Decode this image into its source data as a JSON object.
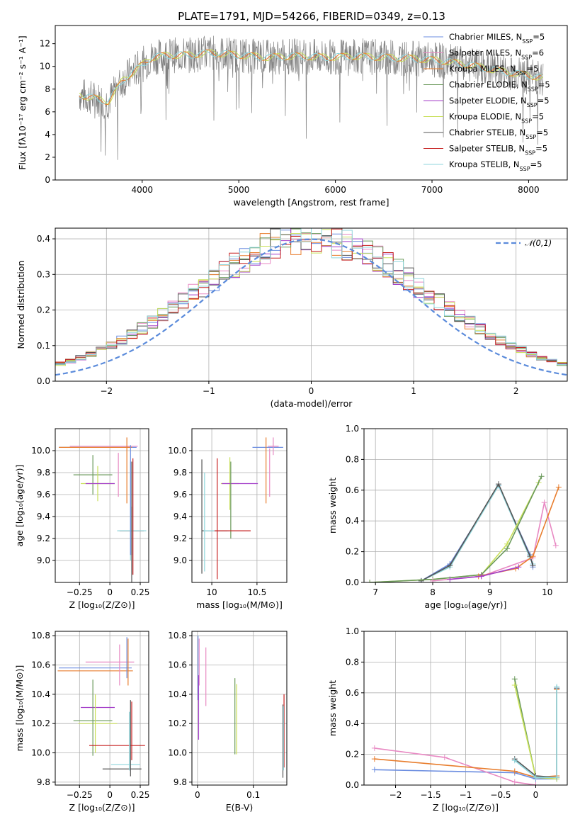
{
  "figure": {
    "title": "PLATE=1791, MJD=54266, FIBERID=0349, z=0.13"
  },
  "colors": {
    "Chabrier MILES": "#6b8de0",
    "Salpeter MILES": "#e889c3",
    "Kroupa MILES": "#e87d2d",
    "Chabrier ELODIE": "#6b9a5b",
    "Salpeter ELODIE": "#a43fc9",
    "Kroupa ELODIE": "#c9e05a",
    "Chabrier STELIB": "#555555",
    "Salpeter STELIB": "#c62020",
    "Kroupa STELIB": "#8fd6dc",
    "normal": "#5b8bdb"
  },
  "chart_data": [
    {
      "id": "spectrum",
      "type": "line",
      "title": "PLATE=1791, MJD=54266, FIBERID=0349, z=0.13",
      "xlabel": "wavelength [Angstrom, rest frame]",
      "ylabel": "Flux [fλ10⁻¹⁷ erg cm⁻² s⁻¹ A⁻¹]",
      "xlim": [
        3100,
        8400
      ],
      "ylim": [
        0,
        13.6
      ],
      "xticks": [
        4000,
        5000,
        6000,
        7000,
        8000
      ],
      "yticks": [
        0,
        2,
        4,
        6,
        8,
        10,
        12
      ],
      "legend_position": "upper right",
      "legend": [
        "Chabrier MILES, N_SSP=5",
        "Salpeter MILES, N_SSP=6",
        "Kroupa MILES, N_SSP=5",
        "Chabrier ELODIE, N_SSP=5",
        "Salpeter ELODIE, N_SSP=5",
        "Kroupa ELODIE, N_SSP=5",
        "Chabrier STELIB, N_SSP=5",
        "Salpeter STELIB, N_SSP=5",
        "Kroupa STELIB, N_SSP=5"
      ],
      "continuum": {
        "x": [
          3350,
          3500,
          3650,
          3800,
          3950,
          4100,
          4300,
          4500,
          4700,
          5000,
          5300,
          5600,
          5900,
          6200,
          6500,
          6800,
          7100,
          7400,
          7700,
          8000,
          8150
        ],
        "y": [
          7.5,
          7.2,
          6.9,
          8.8,
          9.8,
          10.8,
          11.0,
          11.0,
          11.2,
          11.0,
          10.8,
          10.9,
          10.8,
          10.9,
          10.8,
          10.7,
          10.5,
          10.1,
          9.6,
          9.2,
          9.0
        ]
      },
      "notes": [
        "a noisy grey observed spectrum overlaid with nine model fits"
      ]
    },
    {
      "id": "residuals",
      "type": "line",
      "xlabel": "(data-model)/error",
      "ylabel": "Normed distribution",
      "xlim": [
        -2.5,
        2.5
      ],
      "ylim": [
        0,
        0.43
      ],
      "xticks": [
        -2,
        -1,
        0,
        1,
        2
      ],
      "yticks": [
        0.0,
        0.1,
        0.2,
        0.3,
        0.4
      ],
      "grid": true,
      "legend_position": "upper right",
      "legend": [
        "𝒩(0,1)"
      ],
      "normal_curve": {
        "mean": 0,
        "sigma": 1
      }
    },
    {
      "id": "age-vs-Z",
      "type": "scatter",
      "xlabel": "Z [log₁₀(Z/Z⊙)]",
      "ylabel": "age  [log₁₀(age/yr)]",
      "xlim": [
        -0.45,
        0.32
      ],
      "ylim": [
        8.8,
        10.2
      ],
      "xticks": [
        -0.25,
        0.0,
        0.25
      ],
      "yticks": [
        9.0,
        9.2,
        9.4,
        9.6,
        9.8,
        10.0
      ],
      "grid": true,
      "points": [
        {
          "model": "Chabrier MILES",
          "x": -0.1,
          "y": 10.03,
          "xerr": 0.32,
          "yerr": 0.0
        },
        {
          "model": "Salpeter MILES",
          "x": -0.05,
          "y": 10.04,
          "xerr": 0.28,
          "yerr": 0.0
        },
        {
          "model": "Kroupa MILES",
          "x": -0.12,
          "y": 10.03,
          "xerr": 0.3,
          "yerr": 0.0
        },
        {
          "model": "Chabrier ELODIE",
          "x": -0.14,
          "y": 9.78,
          "xerr": 0.16,
          "yerr": 0.18
        },
        {
          "model": "Kroupa ELODIE",
          "x": -0.1,
          "y": 9.7,
          "xerr": 0.14,
          "yerr": 0.16
        },
        {
          "model": "Salpeter ELODIE",
          "x": -0.08,
          "y": 9.7,
          "xerr": 0.12,
          "yerr": 0.0
        },
        {
          "model": "Salpeter MILES",
          "x": 0.07,
          "y": 9.78,
          "xerr": 0.0,
          "yerr": 0.2
        },
        {
          "model": "Kroupa MILES",
          "x": 0.14,
          "y": 9.82,
          "xerr": 0.0,
          "yerr": 0.3
        },
        {
          "model": "Chabrier STELIB",
          "x": 0.18,
          "y": 9.27,
          "xerr": 0.1,
          "yerr": 0.22
        },
        {
          "model": "Salpeter STELIB",
          "x": 0.18,
          "y": 9.27,
          "xerr": 0.1,
          "yerr": 0.0
        },
        {
          "model": "Kroupa STELIB",
          "x": 0.18,
          "y": 9.27,
          "xerr": 0.12,
          "yerr": 0.0
        },
        {
          "model": "Salpeter STELIB",
          "x": 0.19,
          "y": 9.4,
          "xerr": 0.0,
          "yerr": 0.53
        },
        {
          "model": "Chabrier STELIB",
          "x": 0.18,
          "y": 9.35,
          "xerr": 0.0,
          "yerr": 0.55
        },
        {
          "model": "Kroupa STELIB",
          "x": 0.17,
          "y": 9.45,
          "xerr": 0.0,
          "yerr": 0.45
        },
        {
          "model": "Chabrier MILES",
          "x": 0.17,
          "y": 9.55,
          "xerr": 0.0,
          "yerr": 0.5
        }
      ]
    },
    {
      "id": "age-vs-mass",
      "type": "scatter",
      "xlabel": "mass [log₁₀(M/M⊙)]",
      "ylim": [
        8.8,
        10.2
      ],
      "xlim": [
        9.78,
        10.83
      ],
      "xticks": [
        10.0,
        10.5
      ],
      "yticks": [
        9.0,
        9.2,
        9.4,
        9.6,
        9.8,
        10.0
      ],
      "grid": true,
      "points": [
        {
          "model": "Chabrier MILES",
          "x": 10.62,
          "y": 10.03,
          "xerr": 0.17,
          "yerr": 0.0
        },
        {
          "model": "Salpeter MILES",
          "x": 10.68,
          "y": 10.04,
          "xerr": 0.06,
          "yerr": 0.08
        },
        {
          "model": "Kroupa MILES",
          "x": 10.6,
          "y": 9.82,
          "xerr": 0.0,
          "yerr": 0.3
        },
        {
          "model": "Salpeter MILES",
          "x": 10.64,
          "y": 9.8,
          "xerr": 0.0,
          "yerr": 0.22
        },
        {
          "model": "Kroupa ELODIE",
          "x": 10.2,
          "y": 9.7,
          "xerr": 0.1,
          "yerr": 0.24
        },
        {
          "model": "Salpeter ELODIE",
          "x": 10.31,
          "y": 9.7,
          "xerr": 0.2,
          "yerr": 0.0
        },
        {
          "model": "Chabrier ELODIE",
          "x": 10.21,
          "y": 9.55,
          "xerr": 0.0,
          "yerr": 0.35
        },
        {
          "model": "Chabrier STELIB",
          "x": 10.03,
          "y": 9.27,
          "xerr": 0.14,
          "yerr": 0.0
        },
        {
          "model": "Kroupa STELIB",
          "x": 10.05,
          "y": 9.27,
          "xerr": 0.14,
          "yerr": 0.0
        },
        {
          "model": "Salpeter STELIB",
          "x": 10.23,
          "y": 9.27,
          "xerr": 0.2,
          "yerr": 0.0
        },
        {
          "model": "Chabrier STELIB",
          "x": 9.89,
          "y": 9.4,
          "xerr": 0.0,
          "yerr": 0.52
        },
        {
          "model": "Kroupa STELIB",
          "x": 9.92,
          "y": 9.35,
          "xerr": 0.0,
          "yerr": 0.45
        },
        {
          "model": "Salpeter STELIB",
          "x": 10.06,
          "y": 9.38,
          "xerr": 0.0,
          "yerr": 0.55
        }
      ]
    },
    {
      "id": "mass-weight-vs-age",
      "type": "line",
      "xlabel": "age  [log₁₀(age/yr)]",
      "ylabel": "mass weight",
      "xlim": [
        6.8,
        10.35
      ],
      "ylim": [
        0,
        1.0
      ],
      "xticks": [
        7,
        8,
        9,
        10
      ],
      "yticks": [
        0.0,
        0.2,
        0.4,
        0.6,
        0.8,
        1.0
      ],
      "grid": true,
      "series": [
        {
          "model": "Chabrier MILES",
          "x": [
            7.8,
            8.3,
            9.15,
            9.7,
            9.75
          ],
          "y": [
            0.01,
            0.12,
            0.63,
            0.18,
            0.1
          ]
        },
        {
          "model": "Kroupa STELIB",
          "x": [
            7.8,
            8.3,
            9.15,
            9.7,
            9.75
          ],
          "y": [
            0.01,
            0.1,
            0.63,
            0.16,
            0.12
          ]
        },
        {
          "model": "Chabrier STELIB",
          "x": [
            7.8,
            8.3,
            9.15,
            9.7,
            9.75
          ],
          "y": [
            0.01,
            0.11,
            0.64,
            0.17,
            0.11
          ]
        },
        {
          "model": "Kroupa ELODIE",
          "x": [
            6.9,
            8.0,
            8.85,
            9.3,
            9.85
          ],
          "y": [
            0.0,
            0.02,
            0.05,
            0.25,
            0.65
          ]
        },
        {
          "model": "Chabrier ELODIE",
          "x": [
            6.9,
            8.0,
            8.85,
            9.3,
            9.9
          ],
          "y": [
            0.0,
            0.02,
            0.05,
            0.22,
            0.69
          ]
        },
        {
          "model": "Salpeter MILES",
          "x": [
            8.0,
            8.85,
            9.75,
            9.95,
            10.15
          ],
          "y": [
            0.01,
            0.04,
            0.16,
            0.52,
            0.24
          ]
        },
        {
          "model": "Kroupa MILES",
          "x": [
            8.8,
            9.45,
            9.75,
            10.2
          ],
          "y": [
            0.04,
            0.09,
            0.17,
            0.62
          ]
        },
        {
          "model": "Salpeter ELODIE",
          "x": [
            8.3,
            8.85,
            9.5
          ],
          "y": [
            0.02,
            0.04,
            0.1
          ]
        }
      ]
    },
    {
      "id": "mass-vs-Z",
      "type": "scatter",
      "xlabel": "Z [log₁₀(Z/Z⊙)]",
      "ylabel": "mass [log₁₀(M/M⊙)]",
      "xlim": [
        -0.45,
        0.32
      ],
      "ylim": [
        9.78,
        10.83
      ],
      "xticks": [
        -0.25,
        0.0,
        0.25
      ],
      "yticks": [
        9.8,
        10.0,
        10.2,
        10.4,
        10.6,
        10.8
      ],
      "grid": true,
      "points": [
        {
          "model": "Chabrier MILES",
          "x": -0.12,
          "y": 10.58,
          "xerr": 0.3,
          "yerr": 0.0
        },
        {
          "model": "Salpeter MILES",
          "x": 0.0,
          "y": 10.62,
          "xerr": 0.2,
          "yerr": 0.0
        },
        {
          "model": "Kroupa MILES",
          "x": -0.12,
          "y": 10.56,
          "xerr": 0.31,
          "yerr": 0.0
        },
        {
          "model": "Salpeter ELODIE",
          "x": -0.1,
          "y": 10.31,
          "xerr": 0.14,
          "yerr": 0.0
        },
        {
          "model": "Chabrier ELODIE",
          "x": -0.14,
          "y": 10.22,
          "xerr": 0.16,
          "yerr": 0.0
        },
        {
          "model": "Kroupa ELODIE",
          "x": -0.1,
          "y": 10.2,
          "xerr": 0.16,
          "yerr": 0.0
        },
        {
          "model": "Chabrier ELODIE",
          "x": -0.14,
          "y": 10.24,
          "xerr": 0.0,
          "yerr": 0.26
        },
        {
          "model": "Kroupa ELODIE",
          "x": -0.12,
          "y": 10.2,
          "xerr": 0.0,
          "yerr": 0.2
        },
        {
          "model": "Salpeter MILES",
          "x": 0.08,
          "y": 10.6,
          "xerr": 0.0,
          "yerr": 0.14
        },
        {
          "model": "Kroupa MILES",
          "x": 0.15,
          "y": 10.62,
          "xerr": 0.0,
          "yerr": 0.16
        },
        {
          "model": "Chabrier MILES",
          "x": 0.14,
          "y": 10.65,
          "xerr": 0.0,
          "yerr": 0.14
        },
        {
          "model": "Salpeter STELIB",
          "x": 0.06,
          "y": 10.05,
          "xerr": 0.23,
          "yerr": 0.0
        },
        {
          "model": "Kroupa STELIB",
          "x": 0.13,
          "y": 9.92,
          "xerr": 0.12,
          "yerr": 0.0
        },
        {
          "model": "Chabrier STELIB",
          "x": 0.1,
          "y": 9.89,
          "xerr": 0.16,
          "yerr": 0.0
        },
        {
          "model": "Salpeter STELIB",
          "x": 0.18,
          "y": 10.15,
          "xerr": 0.0,
          "yerr": 0.2
        },
        {
          "model": "Chabrier STELIB",
          "x": 0.17,
          "y": 10.1,
          "xerr": 0.0,
          "yerr": 0.26
        },
        {
          "model": "Kroupa STELIB",
          "x": 0.16,
          "y": 10.08,
          "xerr": 0.0,
          "yerr": 0.2
        }
      ]
    },
    {
      "id": "mass-vs-EBV",
      "type": "scatter",
      "xlabel": "E(B-V)",
      "xlim": [
        -0.01,
        0.16
      ],
      "ylim": [
        9.78,
        10.83
      ],
      "xticks": [
        0.0,
        0.1
      ],
      "yticks": [
        9.8,
        10.0,
        10.2,
        10.4,
        10.6,
        10.8
      ],
      "grid": true,
      "points": [
        {
          "model": "Chabrier MILES",
          "x": 0.001,
          "y": 10.58,
          "xerr": 0.0,
          "yerr": 0.22
        },
        {
          "model": "Salpeter MILES",
          "x": 0.003,
          "y": 10.62,
          "xerr": 0.0,
          "yerr": 0.16
        },
        {
          "model": "Salpeter MILES",
          "x": 0.015,
          "y": 10.52,
          "xerr": 0.0,
          "yerr": 0.2
        },
        {
          "model": "Salpeter ELODIE",
          "x": 0.002,
          "y": 10.31,
          "xerr": 0.0,
          "yerr": 0.22
        },
        {
          "model": "Chabrier ELODIE",
          "x": 0.067,
          "y": 10.25,
          "xerr": 0.0,
          "yerr": 0.26
        },
        {
          "model": "Kroupa ELODIE",
          "x": 0.07,
          "y": 10.23,
          "xerr": 0.0,
          "yerr": 0.24
        },
        {
          "model": "Salpeter STELIB",
          "x": 0.155,
          "y": 10.15,
          "xerr": 0.0,
          "yerr": 0.25
        },
        {
          "model": "Chabrier STELIB",
          "x": 0.153,
          "y": 10.08,
          "xerr": 0.0,
          "yerr": 0.25
        },
        {
          "model": "Kroupa STELIB",
          "x": 0.154,
          "y": 10.1,
          "xerr": 0.0,
          "yerr": 0.22
        }
      ]
    },
    {
      "id": "mass-weight-vs-Z",
      "type": "line",
      "xlabel": "Z [log₁₀(Z/Z⊙)]",
      "ylabel": "mass weight",
      "xlim": [
        -2.45,
        0.45
      ],
      "ylim": [
        0,
        1.0
      ],
      "xticks": [
        -2.0,
        -1.5,
        -1.0,
        -0.5,
        0.0
      ],
      "yticks": [
        0.0,
        0.2,
        0.4,
        0.6,
        0.8,
        1.0
      ],
      "grid": true,
      "series": [
        {
          "model": "Chabrier MILES",
          "x": [
            -2.3,
            -0.3,
            0.0,
            0.3,
            0.3
          ],
          "y": [
            0.1,
            0.08,
            0.04,
            0.04,
            0.63
          ]
        },
        {
          "model": "Salpeter MILES",
          "x": [
            -2.3,
            -1.3,
            -0.3,
            0.0
          ],
          "y": [
            0.24,
            0.18,
            0.02,
            0.0
          ]
        },
        {
          "model": "Kroupa MILES",
          "x": [
            -2.3,
            -0.3,
            0.0,
            0.3,
            0.3
          ],
          "y": [
            0.17,
            0.09,
            0.05,
            0.06,
            0.62
          ]
        },
        {
          "model": "Chabrier ELODIE",
          "x": [
            -0.3,
            0.0,
            0.3
          ],
          "y": [
            0.69,
            0.05,
            0.05
          ]
        },
        {
          "model": "Kroupa ELODIE",
          "x": [
            -0.3,
            0.0,
            0.3
          ],
          "y": [
            0.65,
            0.05,
            0.04
          ]
        },
        {
          "model": "Chabrier STELIB",
          "x": [
            -0.3,
            0.0,
            0.3,
            0.3
          ],
          "y": [
            0.17,
            0.06,
            0.05,
            0.63
          ]
        },
        {
          "model": "Kroupa STELIB",
          "x": [
            -0.3,
            0.0,
            0.3,
            0.3
          ],
          "y": [
            0.16,
            0.05,
            0.05,
            0.64
          ]
        }
      ]
    }
  ]
}
